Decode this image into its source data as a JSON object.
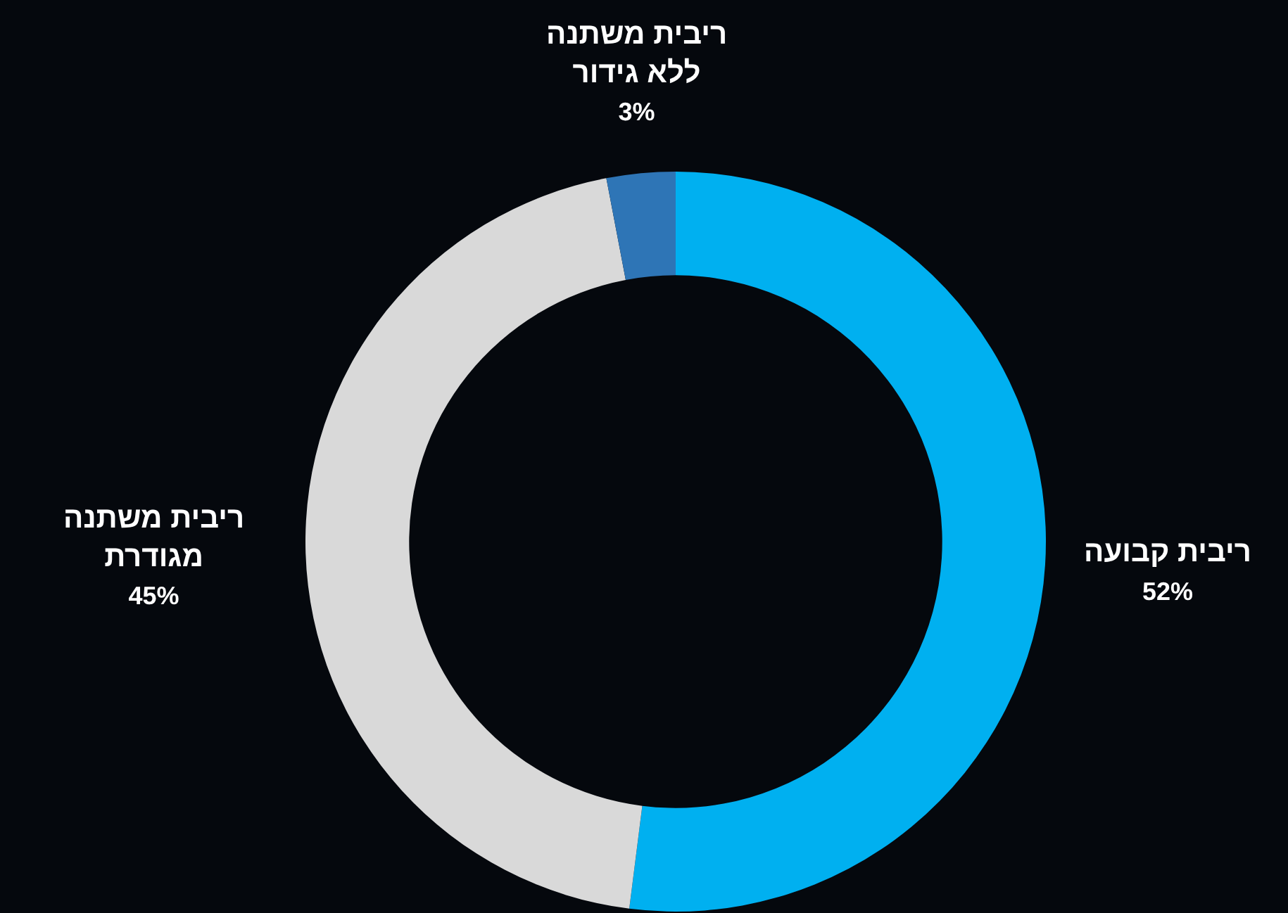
{
  "chart_data": {
    "type": "donut",
    "categories": [
      "ריבית קבועה",
      "ריבית משתנה מגודרת",
      "ריבית משתנה ללא גידור"
    ],
    "values": [
      52,
      45,
      3
    ],
    "colors": [
      "#00b0f0",
      "#d9d9d9",
      "#2e75b6"
    ],
    "value_labels": [
      "52%",
      "45%",
      "3%"
    ],
    "legend": false
  }
}
